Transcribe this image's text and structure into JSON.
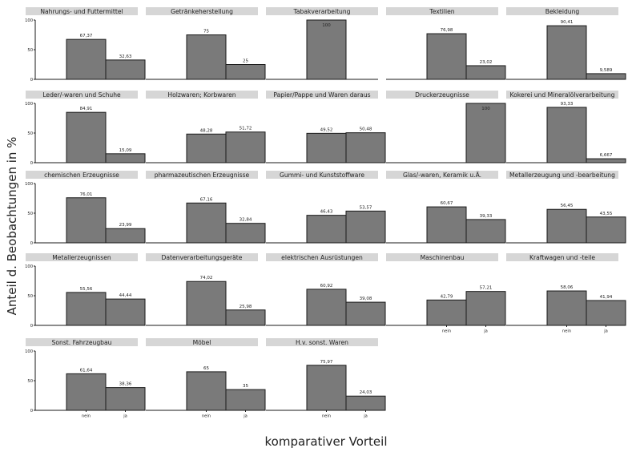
{
  "chart_data": {
    "type": "bar",
    "facet_layout": "5 columns x 5 rows",
    "xlabel": "komparativer Vorteil",
    "ylabel": "Anteil d. Beobachtungen in %",
    "ylim": [
      0,
      100
    ],
    "y_ticks": [
      "0",
      "50",
      "100"
    ],
    "categories": [
      "nein",
      "ja"
    ],
    "bar_color": "#7a7a7a",
    "strip_color": "#d6d6d6",
    "panels": [
      {
        "title": "Nahrungs- und Futtermittel",
        "values": [
          67.37,
          32.63
        ],
        "labels": [
          "67,37",
          "32,63"
        ]
      },
      {
        "title": "Getränkeherstellung",
        "values": [
          75,
          25
        ],
        "labels": [
          "75",
          "25"
        ]
      },
      {
        "title": "Tabakverarbeitung",
        "values": [
          100,
          0
        ],
        "labels": [
          "100",
          ""
        ]
      },
      {
        "title": "Textilien",
        "values": [
          76.98,
          23.02
        ],
        "labels": [
          "76,98",
          "23,02"
        ]
      },
      {
        "title": "Bekleidung",
        "values": [
          90.41,
          9.589
        ],
        "labels": [
          "90,41",
          "9,589"
        ]
      },
      {
        "title": "Leder/-waren und Schuhe",
        "values": [
          84.91,
          15.09
        ],
        "labels": [
          "84,91",
          "15,09"
        ]
      },
      {
        "title": "Holzwaren; Korbwaren",
        "values": [
          48.28,
          51.72
        ],
        "labels": [
          "48,28",
          "51,72"
        ]
      },
      {
        "title": "Papier/Pappe und Waren daraus",
        "values": [
          49.52,
          50.48
        ],
        "labels": [
          "49,52",
          "50,48"
        ]
      },
      {
        "title": "Druckerzeugnisse",
        "values": [
          0,
          100
        ],
        "labels": [
          "",
          "100"
        ]
      },
      {
        "title": "Kokerei und Mineralölverarbeitung",
        "values": [
          93.33,
          6.667
        ],
        "labels": [
          "93,33",
          "6,667"
        ]
      },
      {
        "title": "chemischen Erzeugnisse",
        "values": [
          76.01,
          23.99
        ],
        "labels": [
          "76,01",
          "23,99"
        ]
      },
      {
        "title": "pharmazeutischen Erzeugnisse",
        "values": [
          67.16,
          32.84
        ],
        "labels": [
          "67,16",
          "32,84"
        ]
      },
      {
        "title": "Gummi- und Kunststoffware",
        "values": [
          46.43,
          53.57
        ],
        "labels": [
          "46,43",
          "53,57"
        ]
      },
      {
        "title": "Glas/-waren, Keramik u.Ä.",
        "values": [
          60.67,
          39.33
        ],
        "labels": [
          "60,67",
          "39,33"
        ]
      },
      {
        "title": "Metallerzeugung und -bearbeitung",
        "values": [
          56.45,
          43.55
        ],
        "labels": [
          "56,45",
          "43,55"
        ]
      },
      {
        "title": "Metallerzeugnissen",
        "values": [
          55.56,
          44.44
        ],
        "labels": [
          "55,56",
          "44,44"
        ]
      },
      {
        "title": "Datenverarbeitungsgeräte",
        "values": [
          74.02,
          25.98
        ],
        "labels": [
          "74,02",
          "25,98"
        ]
      },
      {
        "title": "elektrischen Ausrüstungen",
        "values": [
          60.92,
          39.08
        ],
        "labels": [
          "60,92",
          "39,08"
        ]
      },
      {
        "title": "Maschinenbau",
        "values": [
          42.79,
          57.21
        ],
        "labels": [
          "42,79",
          "57,21"
        ]
      },
      {
        "title": "Kraftwagen und -teile",
        "values": [
          58.06,
          41.94
        ],
        "labels": [
          "58,06",
          "41,94"
        ]
      },
      {
        "title": "Sonst. Fahrzeugbau",
        "values": [
          61.64,
          38.36
        ],
        "labels": [
          "61,64",
          "38,36"
        ]
      },
      {
        "title": "Möbel",
        "values": [
          65,
          35
        ],
        "labels": [
          "65",
          "35"
        ]
      },
      {
        "title": "H.v. sonst. Waren",
        "values": [
          75.97,
          24.03
        ],
        "labels": [
          "75,97",
          "24,03"
        ]
      }
    ]
  }
}
